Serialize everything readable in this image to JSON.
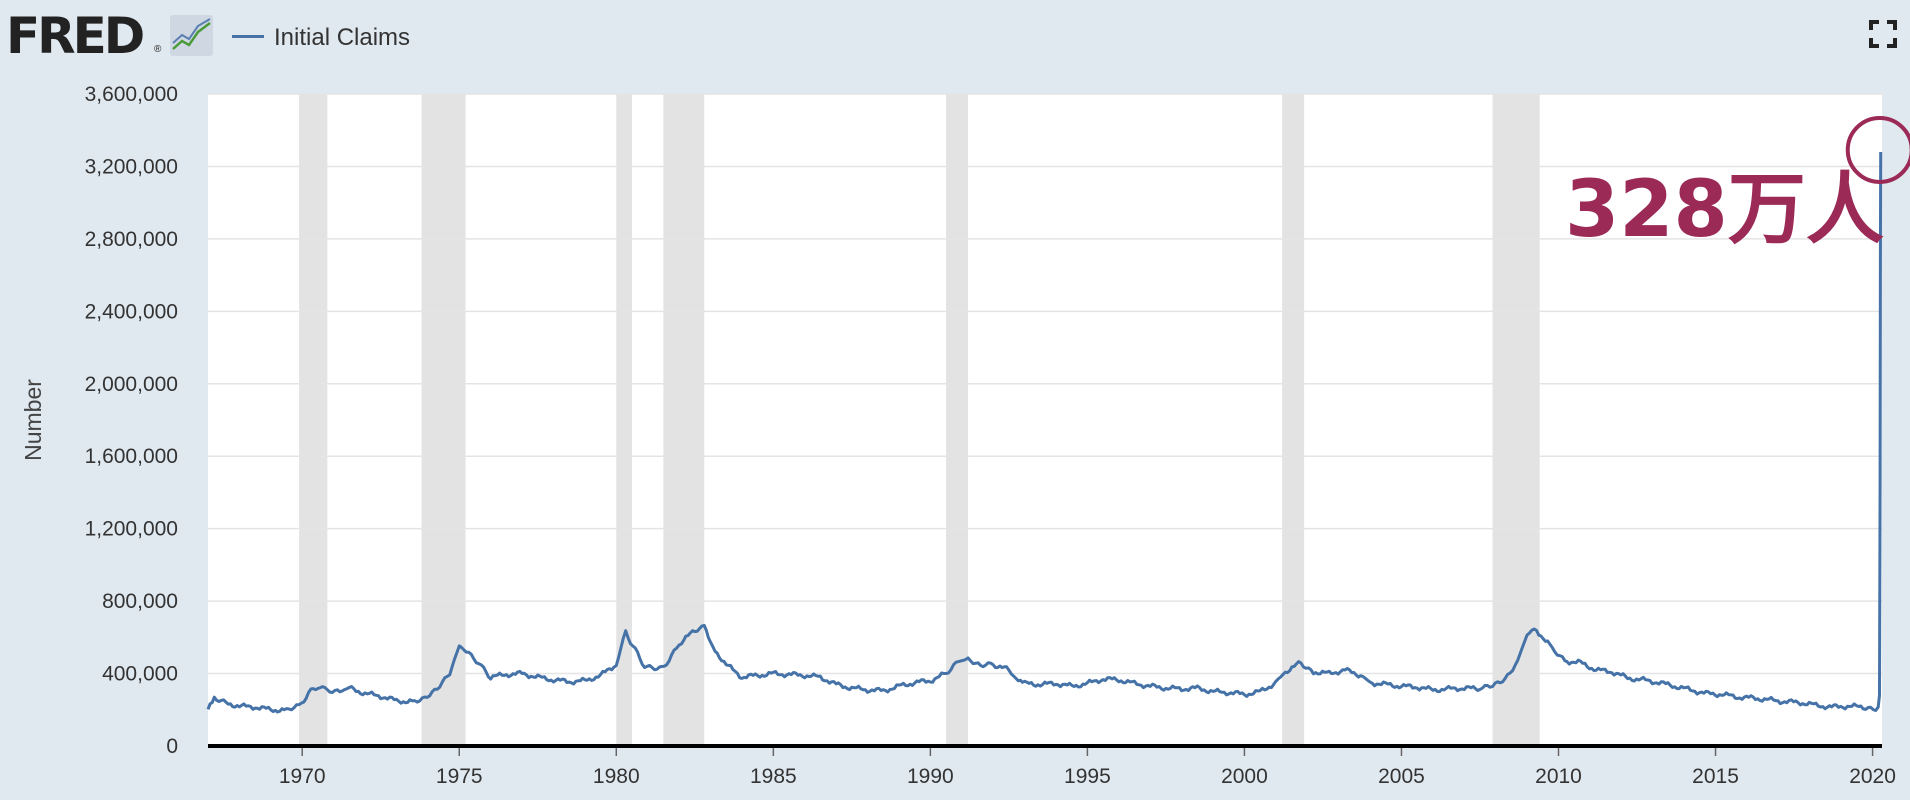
{
  "header": {
    "logo_text": "FRED",
    "logo_mark": "®",
    "logo_icon": "trend-chart-icon",
    "fullscreen_icon": "fullscreen-icon"
  },
  "colors": {
    "series": "#4572a7",
    "recession": "#e3e3e3",
    "annotation": "#9b2a57",
    "background": "#e1e9f0"
  },
  "annotation": {
    "text": "328万人"
  },
  "chart_data": {
    "type": "line",
    "title": "",
    "xlabel": "",
    "ylabel": "Number",
    "xlim": [
      1967.0,
      2020.3
    ],
    "ylim": [
      0,
      3600000
    ],
    "grid": true,
    "legend_position": "top-left",
    "x_ticks": [
      {
        "value": 1970,
        "label": "1970"
      },
      {
        "value": 1975,
        "label": "1975"
      },
      {
        "value": 1980,
        "label": "1980"
      },
      {
        "value": 1985,
        "label": "1985"
      },
      {
        "value": 1990,
        "label": "1990"
      },
      {
        "value": 1995,
        "label": "1995"
      },
      {
        "value": 2000,
        "label": "2000"
      },
      {
        "value": 2005,
        "label": "2005"
      },
      {
        "value": 2010,
        "label": "2010"
      },
      {
        "value": 2015,
        "label": "2015"
      },
      {
        "value": 2020,
        "label": "2020"
      }
    ],
    "y_ticks": [
      {
        "value": 0,
        "label": "0"
      },
      {
        "value": 400000,
        "label": "400,000"
      },
      {
        "value": 800000,
        "label": "800,000"
      },
      {
        "value": 1200000,
        "label": "1,200,000"
      },
      {
        "value": 1600000,
        "label": "1,600,000"
      },
      {
        "value": 2000000,
        "label": "2,000,000"
      },
      {
        "value": 2400000,
        "label": "2,400,000"
      },
      {
        "value": 2800000,
        "label": "2,800,000"
      },
      {
        "value": 3200000,
        "label": "3,200,000"
      },
      {
        "value": 3600000,
        "label": "3,600,000"
      }
    ],
    "recessions": [
      [
        1969.9,
        1970.8
      ],
      [
        1973.8,
        1975.2
      ],
      [
        1980.0,
        1980.5
      ],
      [
        1981.5,
        1982.8
      ],
      [
        1990.5,
        1991.2
      ],
      [
        2001.2,
        2001.9
      ],
      [
        2007.9,
        2009.4
      ]
    ],
    "series": [
      {
        "name": "Initial Claims",
        "points": [
          [
            1967.0,
            210000
          ],
          [
            1967.2,
            270000
          ],
          [
            1967.5,
            240000
          ],
          [
            1968.0,
            220000
          ],
          [
            1968.5,
            215000
          ],
          [
            1969.0,
            200000
          ],
          [
            1969.5,
            198000
          ],
          [
            1969.9,
            220000
          ],
          [
            1970.2,
            290000
          ],
          [
            1970.5,
            330000
          ],
          [
            1970.8,
            310000
          ],
          [
            1971.2,
            305000
          ],
          [
            1971.5,
            320000
          ],
          [
            1972.0,
            290000
          ],
          [
            1972.5,
            275000
          ],
          [
            1973.0,
            250000
          ],
          [
            1973.5,
            245000
          ],
          [
            1973.9,
            270000
          ],
          [
            1974.3,
            320000
          ],
          [
            1974.7,
            400000
          ],
          [
            1975.0,
            550000
          ],
          [
            1975.3,
            520000
          ],
          [
            1975.7,
            440000
          ],
          [
            1976.0,
            380000
          ],
          [
            1976.5,
            395000
          ],
          [
            1977.0,
            400000
          ],
          [
            1977.5,
            380000
          ],
          [
            1978.0,
            365000
          ],
          [
            1978.5,
            355000
          ],
          [
            1979.0,
            360000
          ],
          [
            1979.5,
            390000
          ],
          [
            1980.0,
            450000
          ],
          [
            1980.3,
            630000
          ],
          [
            1980.6,
            530000
          ],
          [
            1980.9,
            440000
          ],
          [
            1981.3,
            420000
          ],
          [
            1981.6,
            450000
          ],
          [
            1982.0,
            560000
          ],
          [
            1982.5,
            640000
          ],
          [
            1982.8,
            660000
          ],
          [
            1983.0,
            560000
          ],
          [
            1983.5,
            450000
          ],
          [
            1984.0,
            380000
          ],
          [
            1984.5,
            390000
          ],
          [
            1985.0,
            400000
          ],
          [
            1985.5,
            395000
          ],
          [
            1986.0,
            390000
          ],
          [
            1986.5,
            380000
          ],
          [
            1987.0,
            340000
          ],
          [
            1987.5,
            320000
          ],
          [
            1988.0,
            310000
          ],
          [
            1988.5,
            305000
          ],
          [
            1989.0,
            330000
          ],
          [
            1989.5,
            350000
          ],
          [
            1990.0,
            360000
          ],
          [
            1990.5,
            400000
          ],
          [
            1990.9,
            470000
          ],
          [
            1991.2,
            480000
          ],
          [
            1991.6,
            440000
          ],
          [
            1992.0,
            450000
          ],
          [
            1992.5,
            420000
          ],
          [
            1992.8,
            360000
          ],
          [
            1993.0,
            345000
          ],
          [
            1993.5,
            340000
          ],
          [
            1994.0,
            345000
          ],
          [
            1994.5,
            330000
          ],
          [
            1995.0,
            345000
          ],
          [
            1995.5,
            370000
          ],
          [
            1996.0,
            365000
          ],
          [
            1996.5,
            345000
          ],
          [
            1997.0,
            330000
          ],
          [
            1997.5,
            320000
          ],
          [
            1998.0,
            315000
          ],
          [
            1998.5,
            320000
          ],
          [
            1999.0,
            300000
          ],
          [
            1999.5,
            295000
          ],
          [
            2000.0,
            285000
          ],
          [
            2000.5,
            300000
          ],
          [
            2001.0,
            350000
          ],
          [
            2001.3,
            410000
          ],
          [
            2001.8,
            460000
          ],
          [
            2002.2,
            410000
          ],
          [
            2002.7,
            400000
          ],
          [
            2003.2,
            420000
          ],
          [
            2003.7,
            390000
          ],
          [
            2004.0,
            350000
          ],
          [
            2004.5,
            340000
          ],
          [
            2005.0,
            330000
          ],
          [
            2005.5,
            325000
          ],
          [
            2006.0,
            310000
          ],
          [
            2006.5,
            315000
          ],
          [
            2007.0,
            320000
          ],
          [
            2007.5,
            315000
          ],
          [
            2007.9,
            330000
          ],
          [
            2008.3,
            370000
          ],
          [
            2008.7,
            470000
          ],
          [
            2009.0,
            620000
          ],
          [
            2009.3,
            640000
          ],
          [
            2009.8,
            540000
          ],
          [
            2010.2,
            470000
          ],
          [
            2010.7,
            460000
          ],
          [
            2011.2,
            420000
          ],
          [
            2011.7,
            410000
          ],
          [
            2012.2,
            375000
          ],
          [
            2012.7,
            365000
          ],
          [
            2013.2,
            350000
          ],
          [
            2013.7,
            330000
          ],
          [
            2014.2,
            310000
          ],
          [
            2014.7,
            290000
          ],
          [
            2015.2,
            285000
          ],
          [
            2015.7,
            270000
          ],
          [
            2016.2,
            265000
          ],
          [
            2016.7,
            255000
          ],
          [
            2017.2,
            245000
          ],
          [
            2017.7,
            240000
          ],
          [
            2018.2,
            225000
          ],
          [
            2018.7,
            215000
          ],
          [
            2019.2,
            220000
          ],
          [
            2019.7,
            215000
          ],
          [
            2020.1,
            210000
          ],
          [
            2020.18,
            215000
          ],
          [
            2020.22,
            280000
          ],
          [
            2020.24,
            1430000
          ],
          [
            2020.25,
            2700000
          ],
          [
            2020.26,
            3280000
          ]
        ]
      }
    ]
  }
}
